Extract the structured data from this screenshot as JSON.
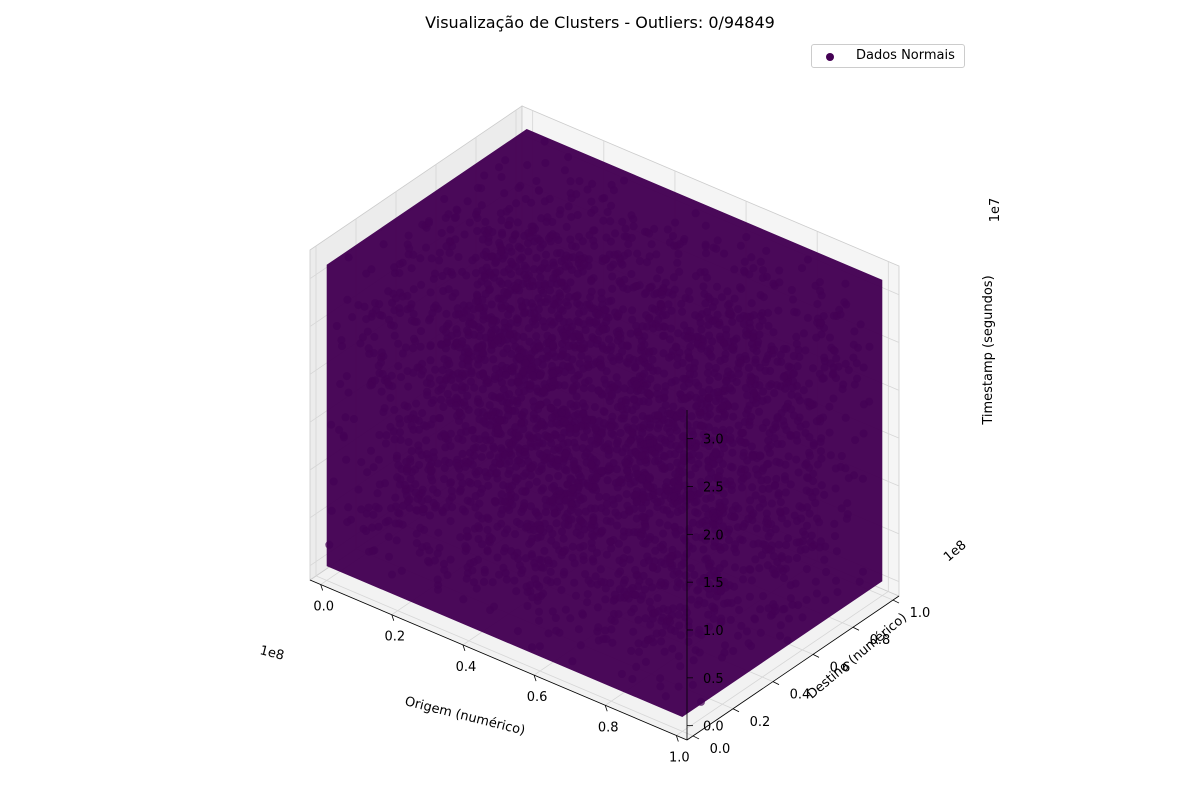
{
  "chart_data": {
    "type": "scatter3d",
    "title": "Visualização de Clusters - Outliers: 0/94849",
    "total_points": 94849,
    "outliers": 0,
    "series": [
      {
        "name": "Dados Normais",
        "color": "#440154",
        "distribution": "uniform",
        "x_range": [
          0,
          100000000
        ],
        "y_range": [
          0,
          100000000
        ],
        "z_range": [
          0,
          31500000
        ]
      }
    ],
    "axes": {
      "x": {
        "label": "Origem (numérico)",
        "ticks": [
          0,
          0.2,
          0.4,
          0.6,
          0.8,
          1.0
        ],
        "tick_labels": [
          "0.0",
          "0.2",
          "0.4",
          "0.6",
          "0.8",
          "1.0"
        ],
        "offset": "1e8"
      },
      "y": {
        "label": "Destino (numérico)",
        "ticks": [
          0,
          0.2,
          0.4,
          0.6,
          0.8,
          1.0
        ],
        "tick_labels": [
          "0.0",
          "0.2",
          "0.4",
          "0.6",
          "0.8",
          "1.0"
        ],
        "offset": "1e8"
      },
      "z": {
        "label": "Timestamp (segundos)",
        "ticks": [
          0,
          0.5,
          1.0,
          1.5,
          2.0,
          2.5,
          3.0
        ],
        "tick_labels": [
          "0.0",
          "0.5",
          "1.0",
          "1.5",
          "2.0",
          "2.5",
          "3.0"
        ],
        "offset": "1e7"
      }
    },
    "grid": true,
    "legend_position": "top-right"
  }
}
